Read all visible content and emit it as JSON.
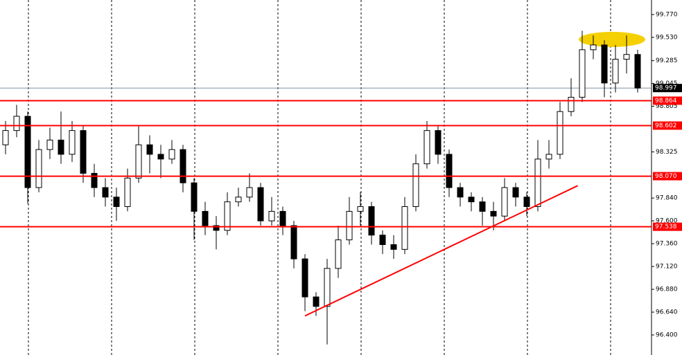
{
  "chart_data": {
    "type": "candlestick",
    "open": [
      98.4,
      98.55,
      98.7,
      97.95,
      98.35,
      98.45,
      98.3,
      98.55,
      98.1,
      97.95,
      97.85,
      97.75,
      98.05,
      98.4,
      98.3,
      98.25,
      98.35,
      98.0,
      97.7,
      97.55,
      97.5,
      97.8,
      97.85,
      97.95,
      97.6,
      97.7,
      97.55,
      97.2,
      96.8,
      96.7,
      97.1,
      97.4,
      97.7,
      97.75,
      97.45,
      97.35,
      97.3,
      97.75,
      98.2,
      98.55,
      98.3,
      97.95,
      97.85,
      97.8,
      97.7,
      97.65,
      97.95,
      97.85,
      97.75,
      98.25,
      98.3,
      98.75,
      98.9,
      99.4,
      99.45,
      99.05,
      99.3,
      99.35
    ],
    "high": [
      98.65,
      98.82,
      98.75,
      98.45,
      98.58,
      98.75,
      98.65,
      98.6,
      98.2,
      98.05,
      97.95,
      98.15,
      98.6,
      98.5,
      98.4,
      98.45,
      98.4,
      98.05,
      97.8,
      97.65,
      97.9,
      97.95,
      98.1,
      98.0,
      97.85,
      97.75,
      97.6,
      97.25,
      96.85,
      97.2,
      97.55,
      97.85,
      97.9,
      97.8,
      97.5,
      97.45,
      97.85,
      98.3,
      98.65,
      98.6,
      98.35,
      98.0,
      97.9,
      97.85,
      97.8,
      98.05,
      98.0,
      97.9,
      98.45,
      98.45,
      98.85,
      99.1,
      99.6,
      99.55,
      99.5,
      99.45,
      99.55,
      99.4
    ],
    "low": [
      98.3,
      98.48,
      97.78,
      97.9,
      98.25,
      98.2,
      98.22,
      98.0,
      97.85,
      97.75,
      97.6,
      97.7,
      98.0,
      98.1,
      98.05,
      98.2,
      97.9,
      97.4,
      97.45,
      97.3,
      97.45,
      97.75,
      97.8,
      97.55,
      97.55,
      97.45,
      97.1,
      96.65,
      96.6,
      96.3,
      97.0,
      97.35,
      97.55,
      97.35,
      97.25,
      97.2,
      97.25,
      97.7,
      98.15,
      98.2,
      97.85,
      97.75,
      97.7,
      97.55,
      97.5,
      97.6,
      97.75,
      97.65,
      97.7,
      98.15,
      98.25,
      98.7,
      98.85,
      99.3,
      98.9,
      98.95,
      99.15,
      98.95
    ],
    "close": [
      98.55,
      98.7,
      97.95,
      98.35,
      98.45,
      98.3,
      98.55,
      98.1,
      97.95,
      97.85,
      97.75,
      98.05,
      98.4,
      98.3,
      98.25,
      98.35,
      98.0,
      97.7,
      97.55,
      97.5,
      97.8,
      97.85,
      97.95,
      97.6,
      97.7,
      97.55,
      97.2,
      96.8,
      96.7,
      97.1,
      97.4,
      97.7,
      97.75,
      97.45,
      97.35,
      97.3,
      97.75,
      98.2,
      98.55,
      98.3,
      97.95,
      97.85,
      97.8,
      97.7,
      97.65,
      97.95,
      97.85,
      97.75,
      98.25,
      98.3,
      98.75,
      98.9,
      99.4,
      99.45,
      99.05,
      99.3,
      99.35,
      98.997
    ],
    "ylim": [
      96.189,
      99.923
    ],
    "yticks": [
      {
        "value": 99.77,
        "label": "99.770"
      },
      {
        "value": 99.53,
        "label": "99.530"
      },
      99.285,
      99.045,
      98.805,
      98.325,
      {
        "value": 97.84,
        "label": "97.840"
      },
      {
        "value": 97.6,
        "label": "97.600"
      },
      {
        "value": 97.36,
        "label": "97.360"
      },
      {
        "value": 97.12,
        "label": "97.120"
      },
      {
        "value": 96.88,
        "label": "96.880"
      },
      {
        "value": 96.64,
        "label": "96.640"
      },
      {
        "value": 96.4,
        "label": "96.400"
      }
    ],
    "levels": [
      98.864,
      98.602,
      {
        "value": 98.07,
        "label": "98.070"
      },
      97.538
    ],
    "level_color": "#ff0000",
    "current_price": 98.997,
    "trendline": {
      "x": [
        27,
        51.6
      ],
      "y": [
        96.6,
        97.97
      ]
    }
  }
}
